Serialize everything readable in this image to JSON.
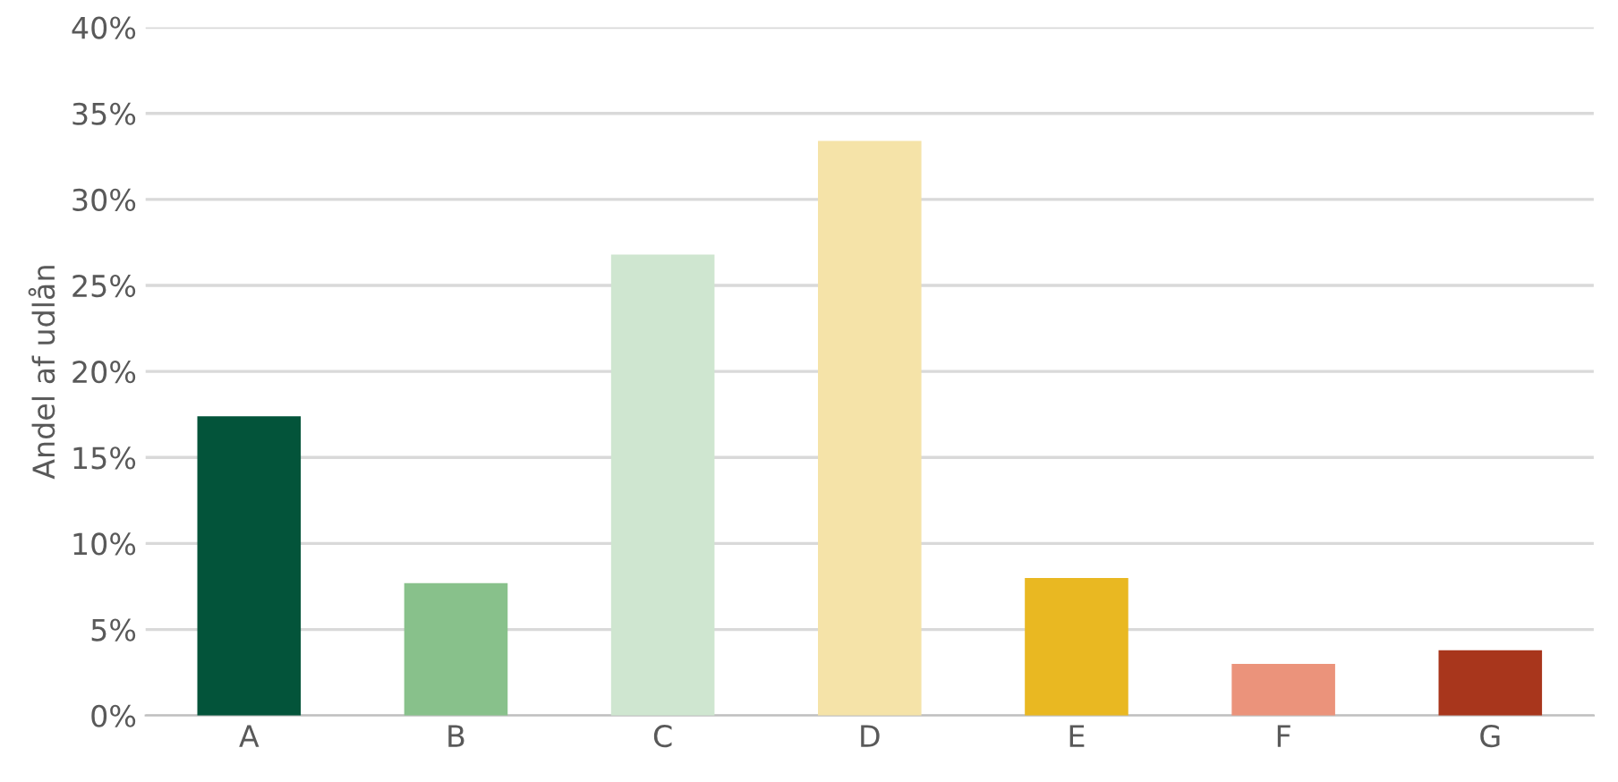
{
  "chart_data": {
    "type": "bar",
    "ylabel": "Andel af udlån",
    "categories": [
      "A",
      "B",
      "C",
      "D",
      "E",
      "F",
      "G"
    ],
    "values": [
      17.4,
      7.7,
      26.8,
      33.4,
      8.0,
      3.0,
      3.8
    ],
    "colors": [
      "#03543a",
      "#88c18b",
      "#cfe6d0",
      "#f5e3a8",
      "#e9b822",
      "#eb937b",
      "#a8361c"
    ],
    "ylim": [
      0,
      40
    ],
    "yticks": [
      {
        "value": 0,
        "label": "0%"
      },
      {
        "value": 5,
        "label": "5%"
      },
      {
        "value": 10,
        "label": "10%"
      },
      {
        "value": 15,
        "label": "15%"
      },
      {
        "value": 20,
        "label": "20%"
      },
      {
        "value": 25,
        "label": "25%"
      },
      {
        "value": 30,
        "label": "30%"
      },
      {
        "value": 35,
        "label": "35%"
      },
      {
        "value": 40,
        "label": "40%"
      }
    ],
    "grid": "y"
  }
}
